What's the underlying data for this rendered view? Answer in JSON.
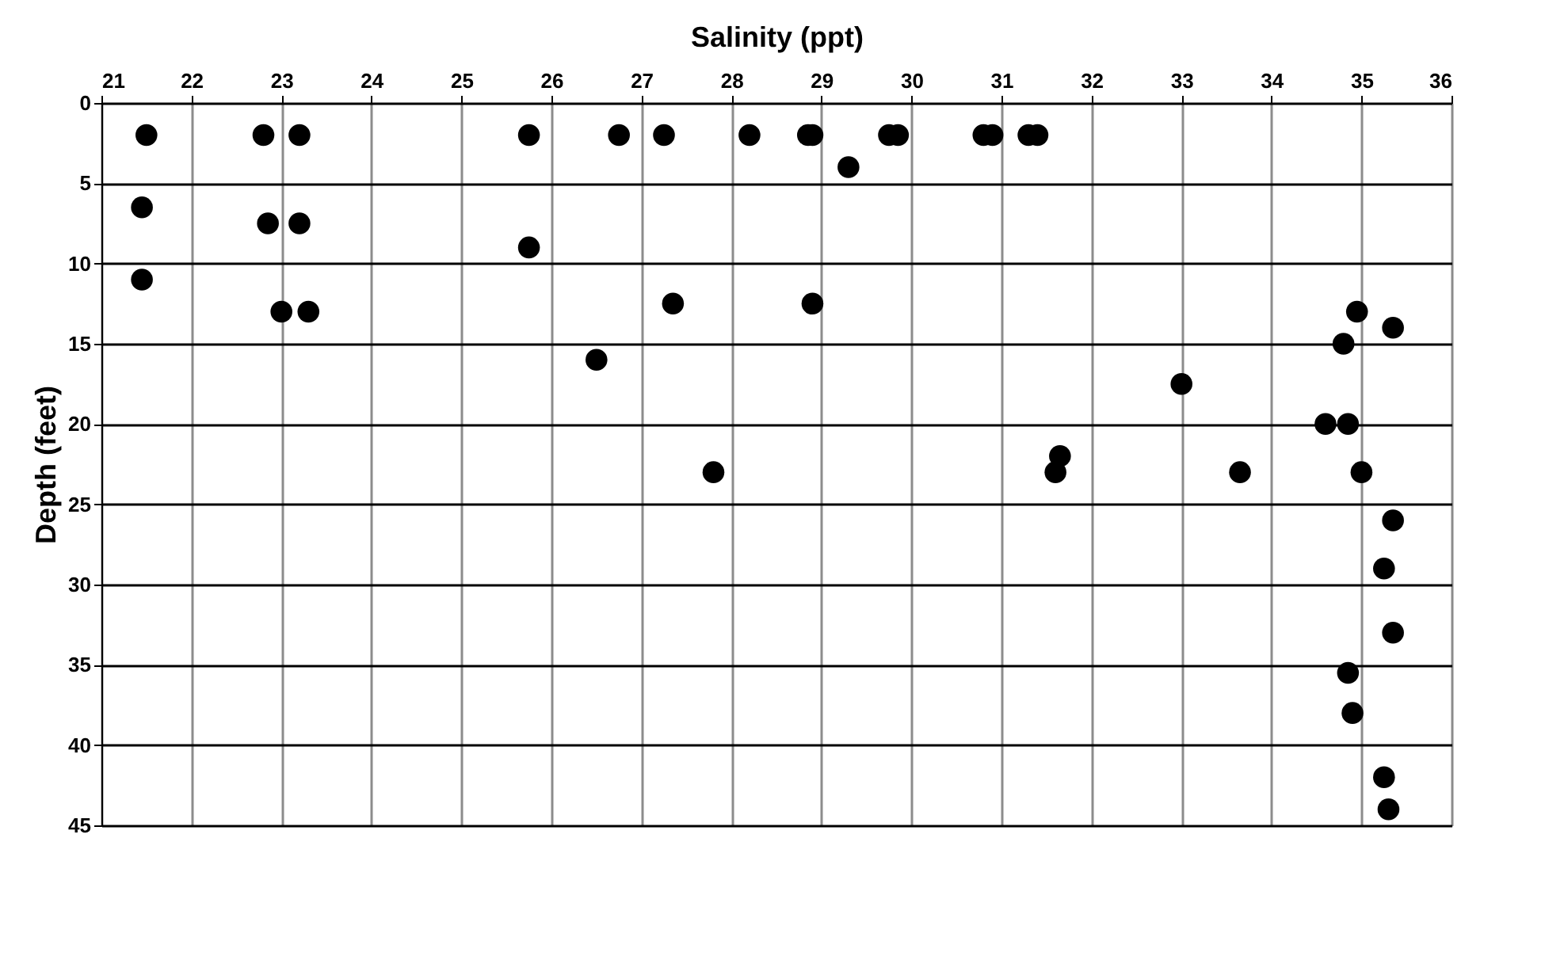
{
  "chart_data": {
    "type": "scatter",
    "title": "Salinity (ppt)",
    "ylabel": "Depth (feet)",
    "x": [
      21.5,
      22.8,
      23.2,
      25.75,
      26.75,
      27.25,
      28.2,
      28.85,
      28.9,
      29.75,
      29.85,
      30.8,
      30.9,
      31.3,
      31.4,
      29.3,
      21.45,
      22.85,
      23.2,
      25.75,
      21.45,
      23.0,
      23.3,
      27.35,
      28.9,
      26.5,
      34.95,
      35.35,
      34.8,
      33.0,
      34.6,
      34.85,
      27.8,
      31.65,
      31.6,
      33.65,
      35.0,
      35.35,
      35.25,
      35.35,
      34.85,
      34.9,
      35.25,
      35.3
    ],
    "series": [
      {
        "color": "#000000",
        "values": [
          2,
          2,
          2,
          2,
          2,
          2,
          2,
          2,
          2,
          2,
          2,
          2,
          2,
          2,
          2,
          4,
          6.5,
          7.5,
          7.5,
          9,
          11,
          13,
          13,
          12.5,
          12.5,
          16,
          13,
          14,
          15,
          17.5,
          20,
          20,
          23,
          22,
          23,
          23,
          23,
          26,
          29,
          33,
          35.5,
          38,
          42,
          44
        ]
      }
    ],
    "xlim": [
      21,
      36
    ],
    "xticks": [
      21,
      22,
      23,
      24,
      25,
      26,
      27,
      28,
      29,
      30,
      31,
      32,
      33,
      34,
      35,
      36
    ],
    "ylim": [
      45,
      0
    ],
    "yticks": [
      0,
      5,
      10,
      15,
      20,
      25,
      30,
      35,
      40,
      45
    ],
    "grid": true,
    "marker": "circle"
  }
}
